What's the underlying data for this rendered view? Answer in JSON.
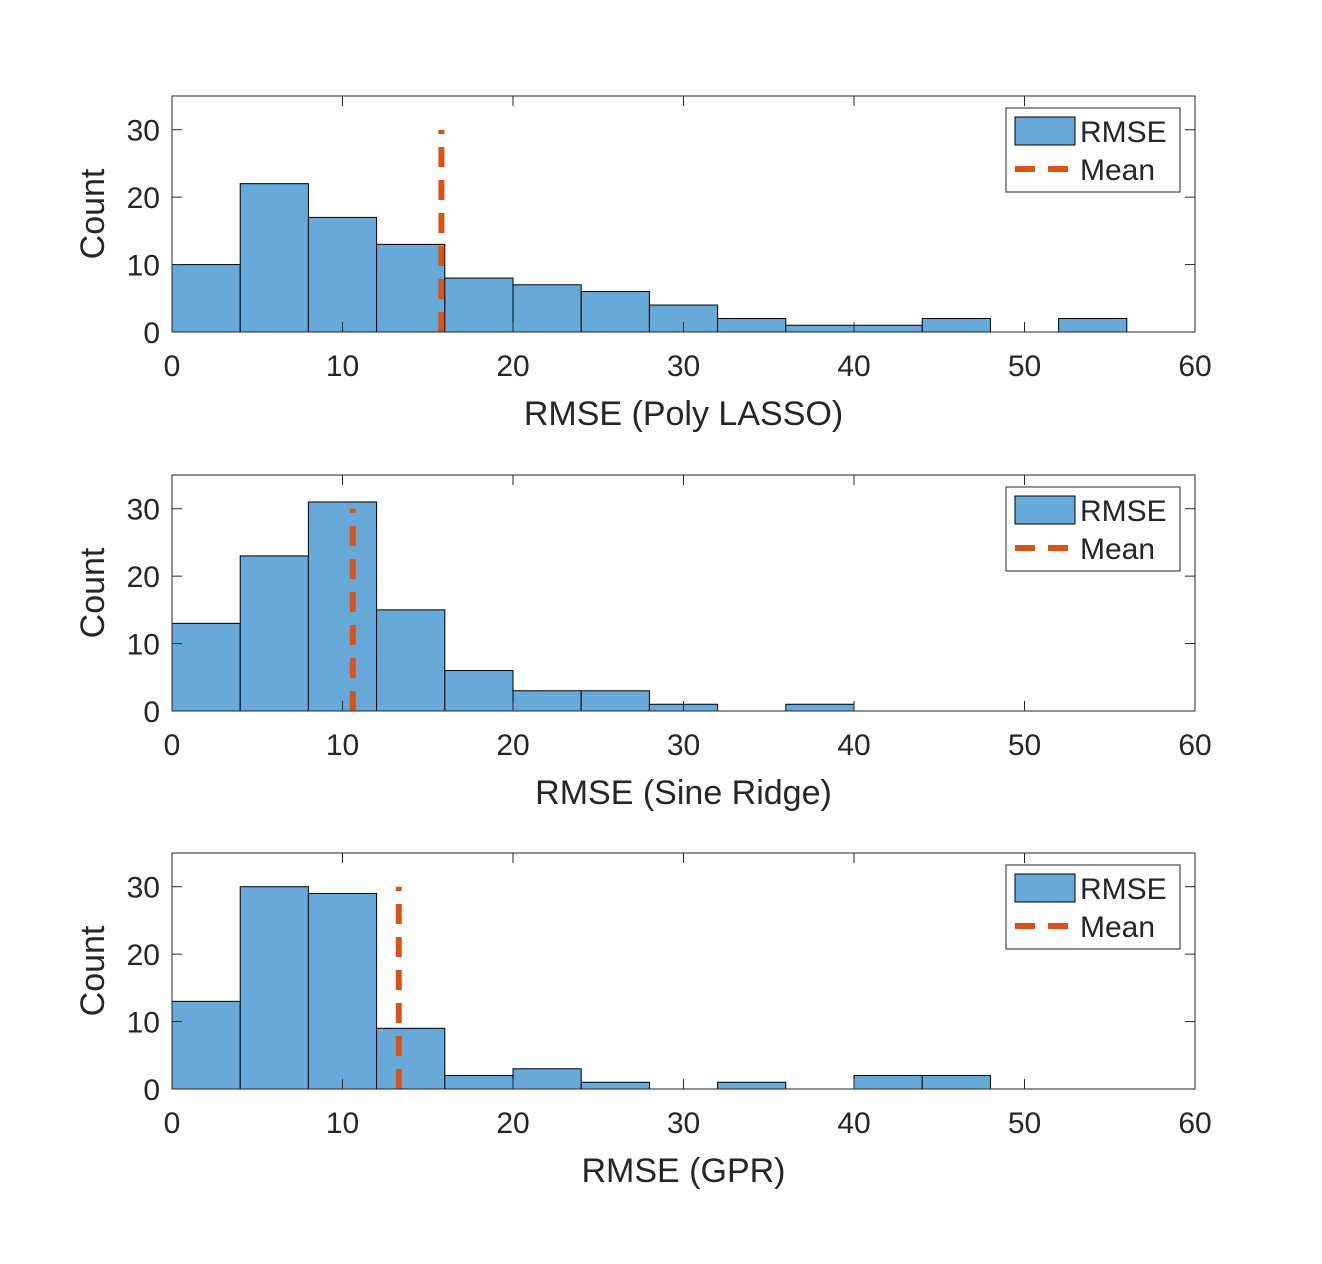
{
  "colors": {
    "bar_fill": "#67aad9",
    "bar_edge": "#000000",
    "mean_line": "#d95319",
    "axis": "#262626",
    "background": "#ffffff"
  },
  "chart_data": [
    {
      "type": "bar",
      "histogram": true,
      "xlabel": "RMSE (Poly LASSO)",
      "ylabel": "Count",
      "xlim": [
        0,
        60
      ],
      "ylim": [
        0,
        35
      ],
      "xticks": [
        0,
        10,
        20,
        30,
        40,
        50,
        60
      ],
      "yticks": [
        0,
        10,
        20,
        30
      ],
      "bin_edges": [
        0,
        4,
        8,
        12,
        16,
        20,
        24,
        28,
        32,
        36,
        40,
        44,
        48,
        52,
        56
      ],
      "counts": [
        10,
        22,
        17,
        13,
        8,
        7,
        6,
        4,
        2,
        1,
        1,
        2,
        0,
        2
      ],
      "mean": 15.8,
      "mean_line_range": [
        0,
        30
      ],
      "legend": [
        "RMSE",
        "Mean"
      ],
      "legend_position": "top-right",
      "grid": false
    },
    {
      "type": "bar",
      "histogram": true,
      "xlabel": "RMSE (Sine Ridge)",
      "ylabel": "Count",
      "xlim": [
        0,
        60
      ],
      "ylim": [
        0,
        35
      ],
      "xticks": [
        0,
        10,
        20,
        30,
        40,
        50,
        60
      ],
      "yticks": [
        0,
        10,
        20,
        30
      ],
      "bin_edges": [
        0,
        4,
        8,
        12,
        16,
        20,
        24,
        28,
        32,
        36,
        40
      ],
      "counts": [
        13,
        23,
        31,
        15,
        6,
        3,
        3,
        1,
        0,
        1
      ],
      "mean": 10.6,
      "mean_line_range": [
        0,
        30
      ],
      "legend": [
        "RMSE",
        "Mean"
      ],
      "legend_position": "top-right",
      "grid": false
    },
    {
      "type": "bar",
      "histogram": true,
      "xlabel": "RMSE (GPR)",
      "ylabel": "Count",
      "xlim": [
        0,
        60
      ],
      "ylim": [
        0,
        35
      ],
      "xticks": [
        0,
        10,
        20,
        30,
        40,
        50,
        60
      ],
      "yticks": [
        0,
        10,
        20,
        30
      ],
      "bin_edges": [
        0,
        4,
        8,
        12,
        16,
        20,
        24,
        28,
        32,
        36,
        40,
        44,
        48
      ],
      "counts": [
        13,
        30,
        29,
        9,
        2,
        3,
        1,
        0,
        1,
        0,
        2,
        2
      ],
      "mean": 13.3,
      "mean_line_range": [
        0,
        30
      ],
      "legend": [
        "RMSE",
        "Mean"
      ],
      "legend_position": "top-right",
      "grid": false
    }
  ]
}
